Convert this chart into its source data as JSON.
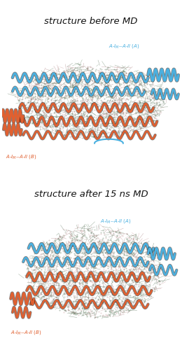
{
  "title1": "structure before MD",
  "title2": "structure after 15 ns MD",
  "cyan_color": "#4ab0e0",
  "red_color": "#e06030",
  "bg_color": "#0a0a0a",
  "white_bg": "#ffffff",
  "title_color": "#111111",
  "lipid_color": "#507050",
  "lipid_stick_color": "#c08080"
}
